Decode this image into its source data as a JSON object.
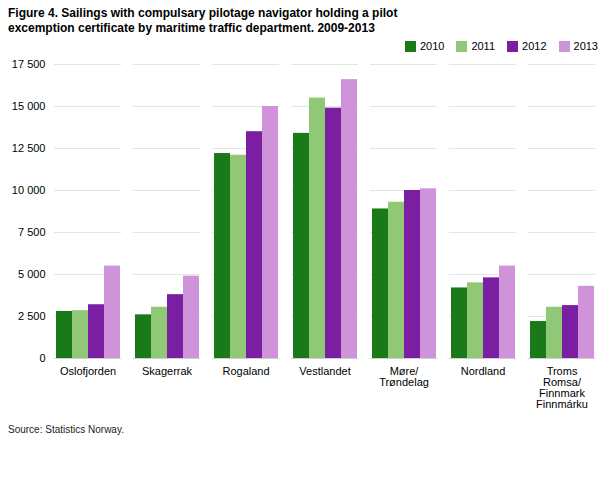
{
  "chart_data": {
    "type": "bar",
    "title": "Figure 4. Sailings with compulsary pilotage navigator holding a pilot\nexcemption certificate by maritime traffic department. 2009-2013",
    "source": "Source: Statistics Norway.",
    "categories": [
      "Oslofjorden",
      "Skagerrak",
      "Rogaland",
      "Vestlandet",
      "Møre/\nTrøndelag",
      "Nordland",
      "Troms\nRomsa/\nFinnmark\nFinnmárku"
    ],
    "series": [
      {
        "name": "2010",
        "color": "#1a7a1a",
        "values": [
          2800,
          2600,
          12200,
          13400,
          8900,
          4200,
          2200
        ]
      },
      {
        "name": "2011",
        "color": "#90c878",
        "values": [
          2850,
          3050,
          12100,
          15500,
          9300,
          4500,
          3050
        ]
      },
      {
        "name": "2012",
        "color": "#7b1fa2",
        "values": [
          3200,
          3800,
          13500,
          14900,
          10000,
          4800,
          3150
        ]
      },
      {
        "name": "2013",
        "color": "#ce93d8",
        "values": [
          5500,
          4900,
          15000,
          16600,
          10100,
          5500,
          4300
        ]
      }
    ],
    "ylim": [
      0,
      17500
    ],
    "yticks": [
      0,
      {
        "value": 2500,
        "label": "2 500"
      },
      {
        "value": 5000,
        "label": "5 000"
      },
      {
        "value": 7500,
        "label": "7 500"
      },
      {
        "value": 10000,
        "label": "10 000"
      },
      {
        "value": 12500,
        "label": "12 500"
      },
      {
        "value": 15000,
        "label": "15 000"
      },
      {
        "value": 17500,
        "label": "17 500"
      }
    ],
    "grid": true,
    "legend": "upper right"
  }
}
